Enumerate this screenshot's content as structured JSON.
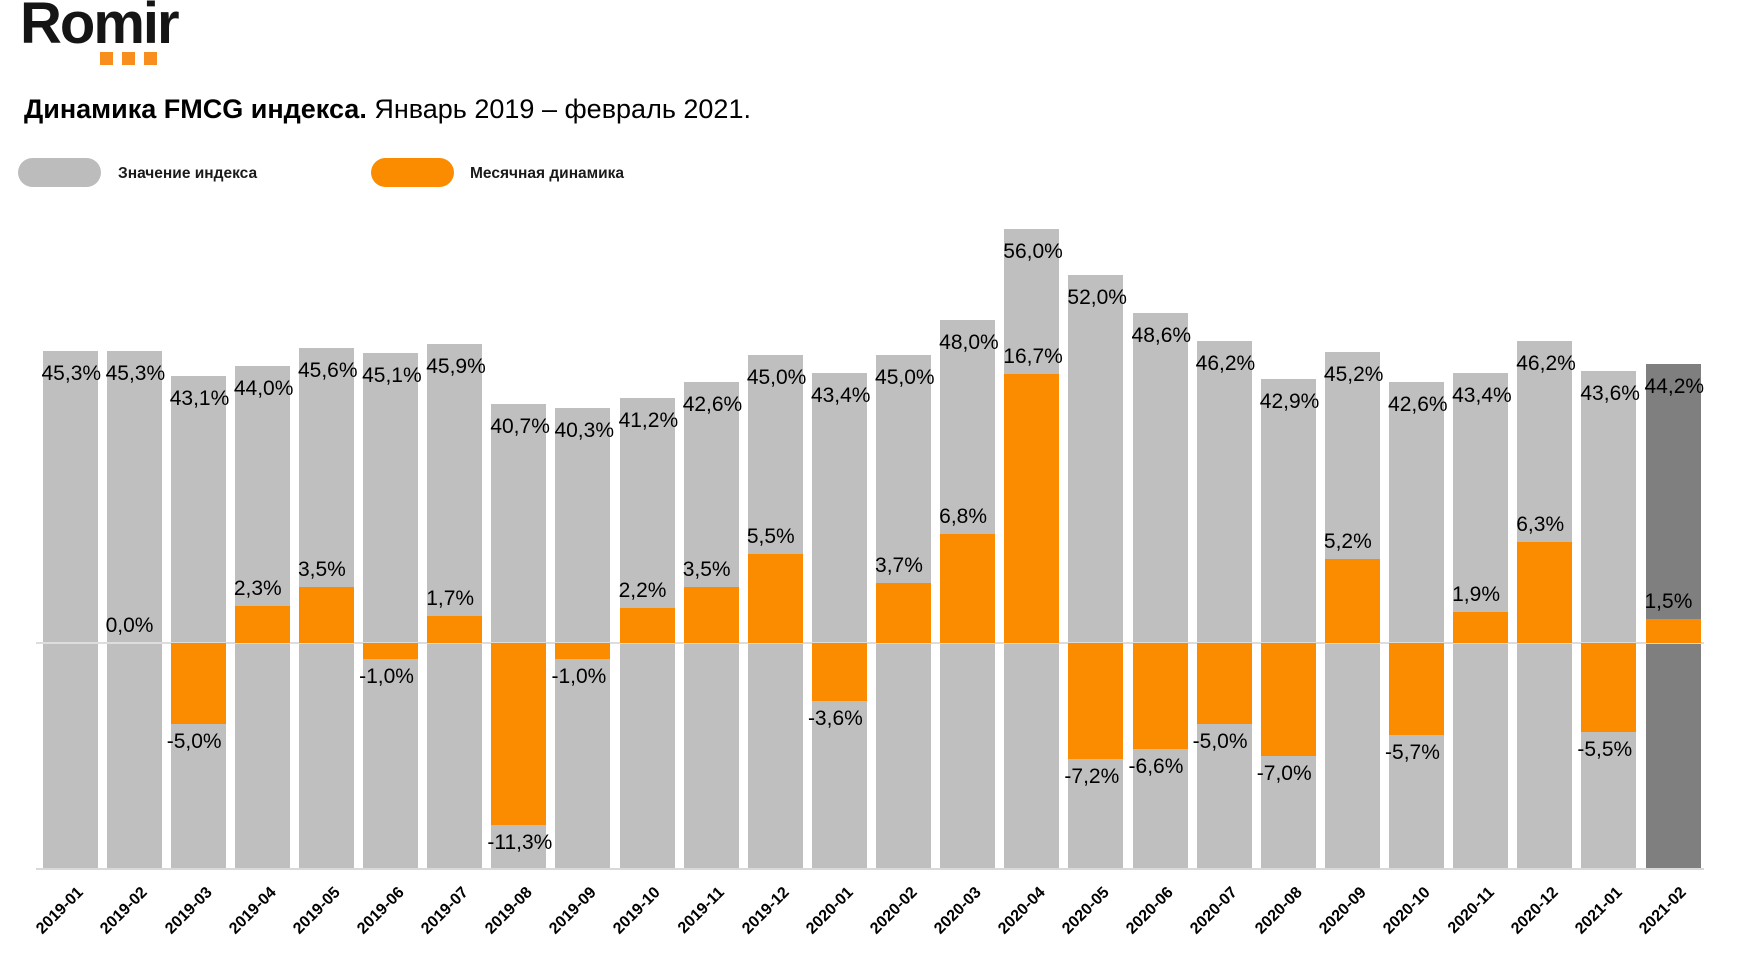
{
  "logo": {
    "text": "Romir",
    "dot_color": "#F78E1E",
    "text_color": "#151515"
  },
  "header": {
    "title_bold": "Динамика FMCG индекса.",
    "title_period": " Январь 2019 – февраль 2021."
  },
  "legend": {
    "items": [
      {
        "label": "Значение индекса",
        "color": "#BCBCBC"
      },
      {
        "label": "Месячная динамика",
        "color": "#FB8C00"
      }
    ]
  },
  "chart_data": {
    "type": "bar",
    "title": "Динамика FMCG индекса. Январь 2019 – февраль 2021.",
    "categories": [
      "2019-01",
      "2019-02",
      "2019-03",
      "2019-04",
      "2019-05",
      "2019-06",
      "2019-07",
      "2019-08",
      "2019-09",
      "2019-10",
      "2019-11",
      "2019-12",
      "2020-01",
      "2020-02",
      "2020-03",
      "2020-04",
      "2020-05",
      "2020-06",
      "2020-07",
      "2020-08",
      "2020-09",
      "2020-10",
      "2020-11",
      "2020-12",
      "2021-01",
      "2021-02"
    ],
    "series": [
      {
        "name": "Значение индекса",
        "unit": "%",
        "color": "#BFBFBF",
        "last_bar_color": "#7F7F7F",
        "values": [
          45.3,
          45.3,
          43.1,
          44.0,
          45.6,
          45.1,
          45.9,
          40.7,
          40.3,
          41.2,
          42.6,
          45.0,
          43.4,
          45.0,
          48.0,
          56.0,
          52.0,
          48.6,
          46.2,
          42.9,
          45.2,
          42.6,
          43.4,
          46.2,
          43.6,
          44.2
        ]
      },
      {
        "name": "Месячная динамика",
        "unit": "%",
        "color": "#FB8C00",
        "values": [
          null,
          0.0,
          -5.0,
          2.3,
          3.5,
          -1.0,
          1.7,
          -11.3,
          -1.0,
          2.2,
          3.5,
          5.5,
          -3.6,
          3.7,
          6.8,
          16.7,
          -7.2,
          -6.6,
          -5.0,
          -7.0,
          5.2,
          -5.7,
          1.9,
          6.3,
          -5.5,
          1.5
        ]
      }
    ],
    "ylim_index": [
      0,
      60
    ],
    "ylim_dynamics_zero_shown": true,
    "grid": false,
    "legend_position": "top-left",
    "decimal_separator": "comma",
    "value_labels": "all-bars",
    "axis_line_color": "#D9D9D9",
    "zero_line_color": "#DDDDDD"
  }
}
